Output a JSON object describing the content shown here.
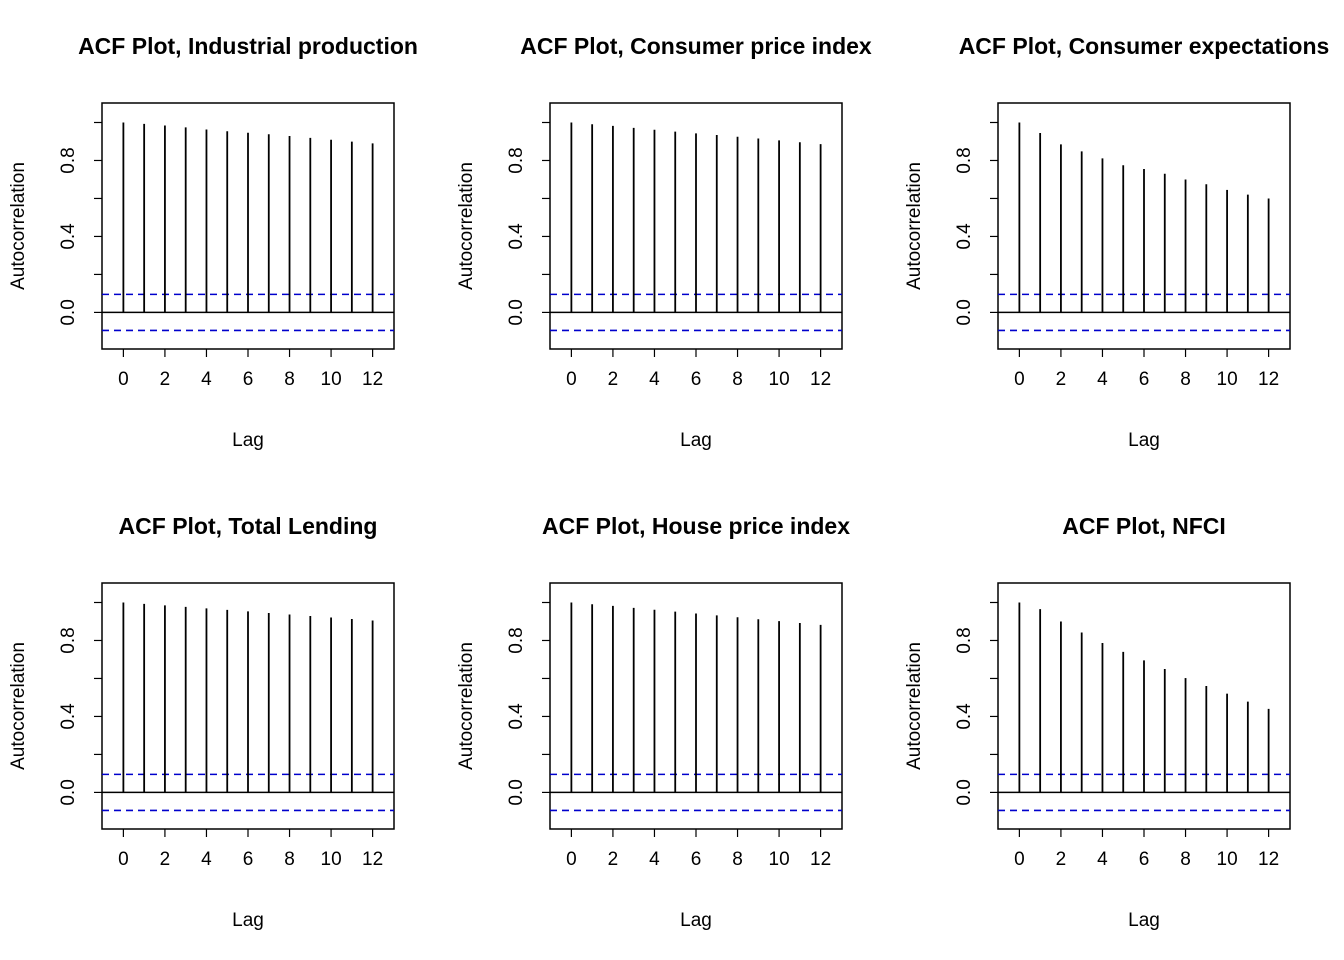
{
  "colors": {
    "stem": "#000000",
    "ci_line": "#0000cc",
    "axis": "#000000",
    "background": "#ffffff"
  },
  "chart_data": [
    {
      "type": "bar",
      "title": "ACF Plot, Industrial production",
      "xlabel": "Lag",
      "ylabel": "Autocorrelation",
      "x": [
        0,
        1,
        2,
        3,
        4,
        5,
        6,
        7,
        8,
        9,
        10,
        11,
        12
      ],
      "values": [
        1.0,
        0.993,
        0.984,
        0.974,
        0.963,
        0.954,
        0.946,
        0.938,
        0.929,
        0.919,
        0.909,
        0.899,
        0.89
      ],
      "ci": [
        0.095,
        -0.095
      ],
      "xlim": [
        -0.5,
        12.5
      ],
      "ylim": [
        -0.14,
        1.05
      ],
      "xticks": [
        0,
        2,
        4,
        6,
        8,
        10,
        12
      ],
      "xtick_labels": [
        "0",
        "2",
        "4",
        "6",
        "8",
        "10",
        "12"
      ],
      "yticks": [
        0.0,
        0.2,
        0.4,
        0.6,
        0.8,
        1.0
      ],
      "ytick_labels": [
        "0.0",
        "",
        "0.4",
        "",
        "0.8",
        ""
      ],
      "grid": false
    },
    {
      "type": "bar",
      "title": "ACF Plot, Consumer price index",
      "xlabel": "Lag",
      "ylabel": "Autocorrelation",
      "x": [
        0,
        1,
        2,
        3,
        4,
        5,
        6,
        7,
        8,
        9,
        10,
        11,
        12
      ],
      "values": [
        1.0,
        0.991,
        0.982,
        0.972,
        0.962,
        0.952,
        0.943,
        0.934,
        0.925,
        0.916,
        0.906,
        0.896,
        0.886
      ],
      "ci": [
        0.095,
        -0.095
      ],
      "xlim": [
        -0.5,
        12.5
      ],
      "ylim": [
        -0.14,
        1.05
      ],
      "xticks": [
        0,
        2,
        4,
        6,
        8,
        10,
        12
      ],
      "xtick_labels": [
        "0",
        "2",
        "4",
        "6",
        "8",
        "10",
        "12"
      ],
      "yticks": [
        0.0,
        0.2,
        0.4,
        0.6,
        0.8,
        1.0
      ],
      "ytick_labels": [
        "0.0",
        "",
        "0.4",
        "",
        "0.8",
        ""
      ],
      "grid": false
    },
    {
      "type": "bar",
      "title": "ACF Plot, Consumer expectations",
      "xlabel": "Lag",
      "ylabel": "Autocorrelation",
      "x": [
        0,
        1,
        2,
        3,
        4,
        5,
        6,
        7,
        8,
        9,
        10,
        11,
        12
      ],
      "values": [
        1.0,
        0.945,
        0.885,
        0.848,
        0.811,
        0.775,
        0.755,
        0.73,
        0.7,
        0.675,
        0.645,
        0.62,
        0.6
      ],
      "ci": [
        0.095,
        -0.095
      ],
      "xlim": [
        -0.5,
        12.5
      ],
      "ylim": [
        -0.14,
        1.05
      ],
      "xticks": [
        0,
        2,
        4,
        6,
        8,
        10,
        12
      ],
      "xtick_labels": [
        "0",
        "2",
        "4",
        "6",
        "8",
        "10",
        "12"
      ],
      "yticks": [
        0.0,
        0.2,
        0.4,
        0.6,
        0.8,
        1.0
      ],
      "ytick_labels": [
        "0.0",
        "",
        "0.4",
        "",
        "0.8",
        ""
      ],
      "grid": false
    },
    {
      "type": "bar",
      "title": "ACF Plot, Total Lending",
      "xlabel": "Lag",
      "ylabel": "Autocorrelation",
      "x": [
        0,
        1,
        2,
        3,
        4,
        5,
        6,
        7,
        8,
        9,
        10,
        11,
        12
      ],
      "values": [
        1.0,
        0.993,
        0.985,
        0.977,
        0.969,
        0.961,
        0.953,
        0.945,
        0.937,
        0.929,
        0.921,
        0.913,
        0.905
      ],
      "ci": [
        0.095,
        -0.095
      ],
      "xlim": [
        -0.5,
        12.5
      ],
      "ylim": [
        -0.14,
        1.05
      ],
      "xticks": [
        0,
        2,
        4,
        6,
        8,
        10,
        12
      ],
      "xtick_labels": [
        "0",
        "2",
        "4",
        "6",
        "8",
        "10",
        "12"
      ],
      "yticks": [
        0.0,
        0.2,
        0.4,
        0.6,
        0.8,
        1.0
      ],
      "ytick_labels": [
        "0.0",
        "",
        "0.4",
        "",
        "0.8",
        ""
      ],
      "grid": false
    },
    {
      "type": "bar",
      "title": "ACF Plot, House price index",
      "xlabel": "Lag",
      "ylabel": "Autocorrelation",
      "x": [
        0,
        1,
        2,
        3,
        4,
        5,
        6,
        7,
        8,
        9,
        10,
        11,
        12
      ],
      "values": [
        1.0,
        0.991,
        0.982,
        0.972,
        0.962,
        0.952,
        0.942,
        0.932,
        0.922,
        0.912,
        0.902,
        0.892,
        0.882
      ],
      "ci": [
        0.095,
        -0.095
      ],
      "xlim": [
        -0.5,
        12.5
      ],
      "ylim": [
        -0.14,
        1.05
      ],
      "xticks": [
        0,
        2,
        4,
        6,
        8,
        10,
        12
      ],
      "xtick_labels": [
        "0",
        "2",
        "4",
        "6",
        "8",
        "10",
        "12"
      ],
      "yticks": [
        0.0,
        0.2,
        0.4,
        0.6,
        0.8,
        1.0
      ],
      "ytick_labels": [
        "0.0",
        "",
        "0.4",
        "",
        "0.8",
        ""
      ],
      "grid": false
    },
    {
      "type": "bar",
      "title": "ACF Plot, NFCI",
      "xlabel": "Lag",
      "ylabel": "Autocorrelation",
      "x": [
        0,
        1,
        2,
        3,
        4,
        5,
        6,
        7,
        8,
        9,
        10,
        11,
        12
      ],
      "values": [
        1.0,
        0.965,
        0.9,
        0.842,
        0.787,
        0.74,
        0.695,
        0.65,
        0.602,
        0.56,
        0.52,
        0.478,
        0.44
      ],
      "ci": [
        0.095,
        -0.095
      ],
      "xlim": [
        -0.5,
        12.5
      ],
      "ylim": [
        -0.14,
        1.05
      ],
      "xticks": [
        0,
        2,
        4,
        6,
        8,
        10,
        12
      ],
      "xtick_labels": [
        "0",
        "2",
        "4",
        "6",
        "8",
        "10",
        "12"
      ],
      "yticks": [
        0.0,
        0.2,
        0.4,
        0.6,
        0.8,
        1.0
      ],
      "ytick_labels": [
        "0.0",
        "",
        "0.4",
        "",
        "0.8",
        ""
      ],
      "grid": false
    }
  ]
}
